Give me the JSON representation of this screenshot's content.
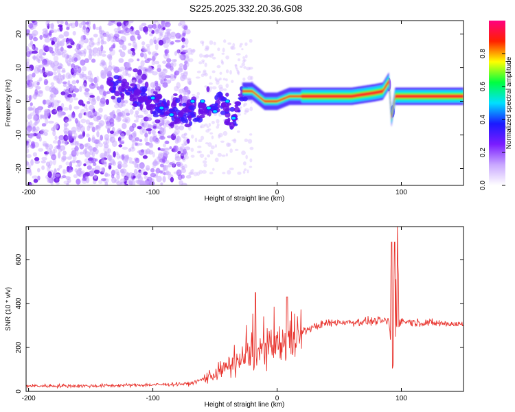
{
  "title": "S225.2025.332.20.36.G08",
  "chart_data": [
    {
      "type": "heatmap",
      "name": "spectrogram",
      "xlabel": "Height of straight line (km)",
      "ylabel": "Frequency (Hz)",
      "xlim": [
        -202,
        150
      ],
      "ylim": [
        -25,
        24
      ],
      "xticks": [
        -200,
        -100,
        0,
        100
      ],
      "yticks": [
        -20,
        -10,
        0,
        10,
        20
      ],
      "colorbar": {
        "label": "Normalized spectral amplitude",
        "range": [
          0,
          1
        ],
        "ticks": [
          "0.0",
          "0.2",
          "0.4",
          "0.6",
          "0.8"
        ],
        "tick_values": [
          0.0,
          0.2,
          0.4,
          0.6,
          0.8
        ],
        "colors": [
          "#ffffff",
          "#c9a8ff",
          "#7a1cff",
          "#1a1aff",
          "#00e0ff",
          "#00ff40",
          "#ffff00",
          "#ff2000",
          "#ff0080"
        ]
      },
      "ridge": {
        "description": "dominant frequency track",
        "x": [
          -130,
          -100,
          -80,
          -60,
          -45,
          -35,
          -28,
          -20,
          -10,
          0,
          10,
          30,
          60,
          78,
          85,
          90,
          92,
          95,
          100,
          150
        ],
        "freq": [
          4,
          0,
          -4,
          -2,
          0,
          -6,
          3,
          3,
          0,
          0,
          1.5,
          1.5,
          1.5,
          2.5,
          3,
          6,
          -5,
          1.5,
          1.5,
          1.5
        ]
      }
    },
    {
      "type": "line",
      "name": "snr",
      "xlabel": "Height of straight line (km)",
      "ylabel": "SNR (10 * v/v)",
      "xlim": [
        -202,
        150
      ],
      "ylim": [
        0,
        750
      ],
      "xticks": [
        -200,
        -100,
        0,
        100
      ],
      "yticks": [
        0,
        200,
        400,
        600
      ],
      "color": "#e8332d",
      "trend": {
        "x": [
          -202,
          -150,
          -100,
          -70,
          -60,
          -50,
          -40,
          -30,
          -20,
          -10,
          0,
          10,
          20,
          30,
          40,
          50,
          60,
          80,
          90,
          93,
          96,
          100,
          110,
          130,
          150
        ],
        "y": [
          25,
          25,
          30,
          35,
          55,
          80,
          110,
          140,
          170,
          190,
          200,
          235,
          270,
          295,
          310,
          315,
          315,
          320,
          320,
          100,
          300,
          320,
          315,
          310,
          305
        ]
      },
      "spikes": [
        {
          "x": -17.5,
          "y": 450
        },
        {
          "x": 8,
          "y": 430
        },
        {
          "x": 92,
          "y": 680
        },
        {
          "x": 94.5,
          "y": 680
        },
        {
          "x": 97,
          "y": 750
        }
      ]
    }
  ]
}
